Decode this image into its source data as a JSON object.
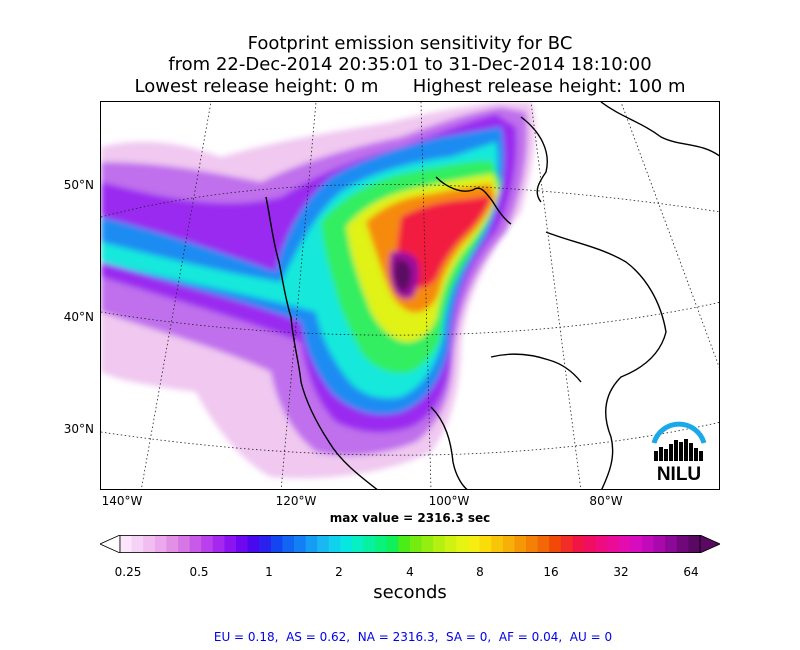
{
  "title": {
    "line1": "Footprint emission sensitivity for BC",
    "line2": "from 22-Dec-2014 20:35:01 to 31-Dec-2014 18:10:00",
    "line3": "Lowest release height: 0 m      Highest release height: 100 m"
  },
  "map": {
    "lat_labels": [
      "50°N",
      "40°N",
      "30°N"
    ],
    "lon_labels": [
      "140°W",
      "120°W",
      "100°W",
      "80°W"
    ],
    "max_value_text": "max value = 2316.3 sec",
    "logo_text": "NILU"
  },
  "colorbar": {
    "ticks": [
      "0.25",
      "0.5",
      "1",
      "2",
      "4",
      "8",
      "16",
      "32",
      "64"
    ],
    "label": "seconds",
    "colors": [
      "#fbe6fb",
      "#f7d2f7",
      "#f2bef2",
      "#eca8ec",
      "#e28fe6",
      "#d777e6",
      "#c95ae8",
      "#b940ec",
      "#a428f0",
      "#8c14f2",
      "#6e08f0",
      "#4a08ee",
      "#2c20ee",
      "#1446f0",
      "#1264f2",
      "#1280f4",
      "#169cf4",
      "#1ab8f2",
      "#10d2ee",
      "#08e6e0",
      "#06f0c4",
      "#06f2a0",
      "#08f27c",
      "#10f058",
      "#4cec16",
      "#74ec10",
      "#96ee10",
      "#b6f010",
      "#d0f212",
      "#e6f414",
      "#f6ee10",
      "#fadc0a",
      "#f8c608",
      "#f6b008",
      "#f49808",
      "#f48008",
      "#f26808",
      "#f24808",
      "#f22c28",
      "#f21444",
      "#f00e62",
      "#ee0c7e",
      "#ea0c98",
      "#e20cb0",
      "#d60cbe",
      "#c20aba",
      "#a808ac",
      "#8c0896",
      "#70087c",
      "#5a0862"
    ]
  },
  "regional_text": "EU = 0.18,  AS = 0.62,  NA = 2316.3,  SA = 0,  AF = 0.04,  AU = 0"
}
